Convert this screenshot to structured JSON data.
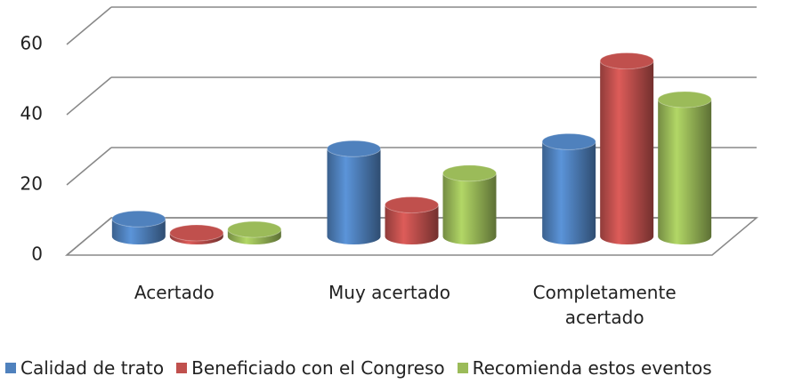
{
  "chart_data": {
    "type": "bar3d",
    "categories": [
      "Acertado",
      "Muy acertado",
      "Completamente acertado"
    ],
    "series": [
      {
        "name": "Calidad de trato",
        "color": "#4f81bd",
        "values": [
          5,
          25,
          27
        ]
      },
      {
        "name": "Beneficiado con el Congreso",
        "color": "#c0504d",
        "values": [
          1,
          9,
          50
        ]
      },
      {
        "name": "Recomienda estos eventos",
        "color": "#9bbb59",
        "values": [
          2,
          18,
          39
        ]
      }
    ],
    "ylim": [
      0,
      60
    ],
    "yticks": [
      0,
      20,
      40,
      60
    ],
    "grid": true,
    "legend": "bottom"
  }
}
